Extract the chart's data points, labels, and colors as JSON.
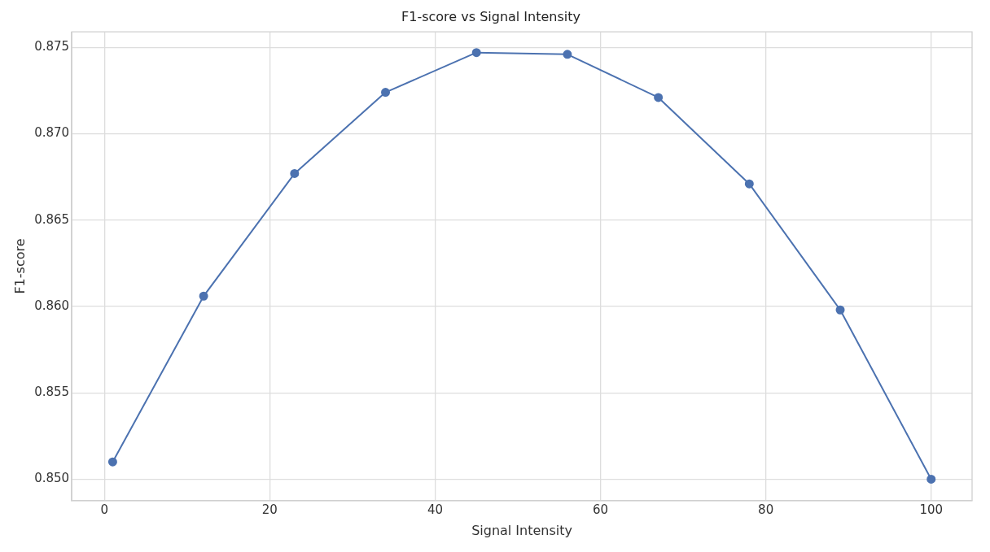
{
  "chart_data": {
    "type": "line",
    "title": "F1-score vs Signal Intensity",
    "xlabel": "Signal Intensity",
    "ylabel": "F1-score",
    "x": [
      1,
      12,
      23,
      34,
      45,
      56,
      67,
      78,
      89,
      100
    ],
    "series": [
      {
        "color": "#4c72b0",
        "values": [
          0.851,
          0.8606,
          0.8677,
          0.8724,
          0.8747,
          0.8746,
          0.8721,
          0.8671,
          0.8598,
          0.85
        ]
      }
    ],
    "xlim": [
      -3.95,
      104.95
    ],
    "ylim": [
      0.84876,
      0.8759
    ],
    "xticks": [
      0,
      20,
      40,
      60,
      80,
      100
    ],
    "yticks": [
      {
        "value": 0.85,
        "label": "0.850"
      },
      {
        "value": 0.855,
        "label": "0.855"
      },
      {
        "value": 0.86,
        "label": "0.860"
      },
      {
        "value": 0.865,
        "label": "0.865"
      },
      {
        "value": 0.87,
        "label": "0.870"
      },
      {
        "value": 0.875,
        "label": "0.875"
      }
    ],
    "grid": true,
    "marker": "circle",
    "line_style": "solid",
    "legend": false
  }
}
